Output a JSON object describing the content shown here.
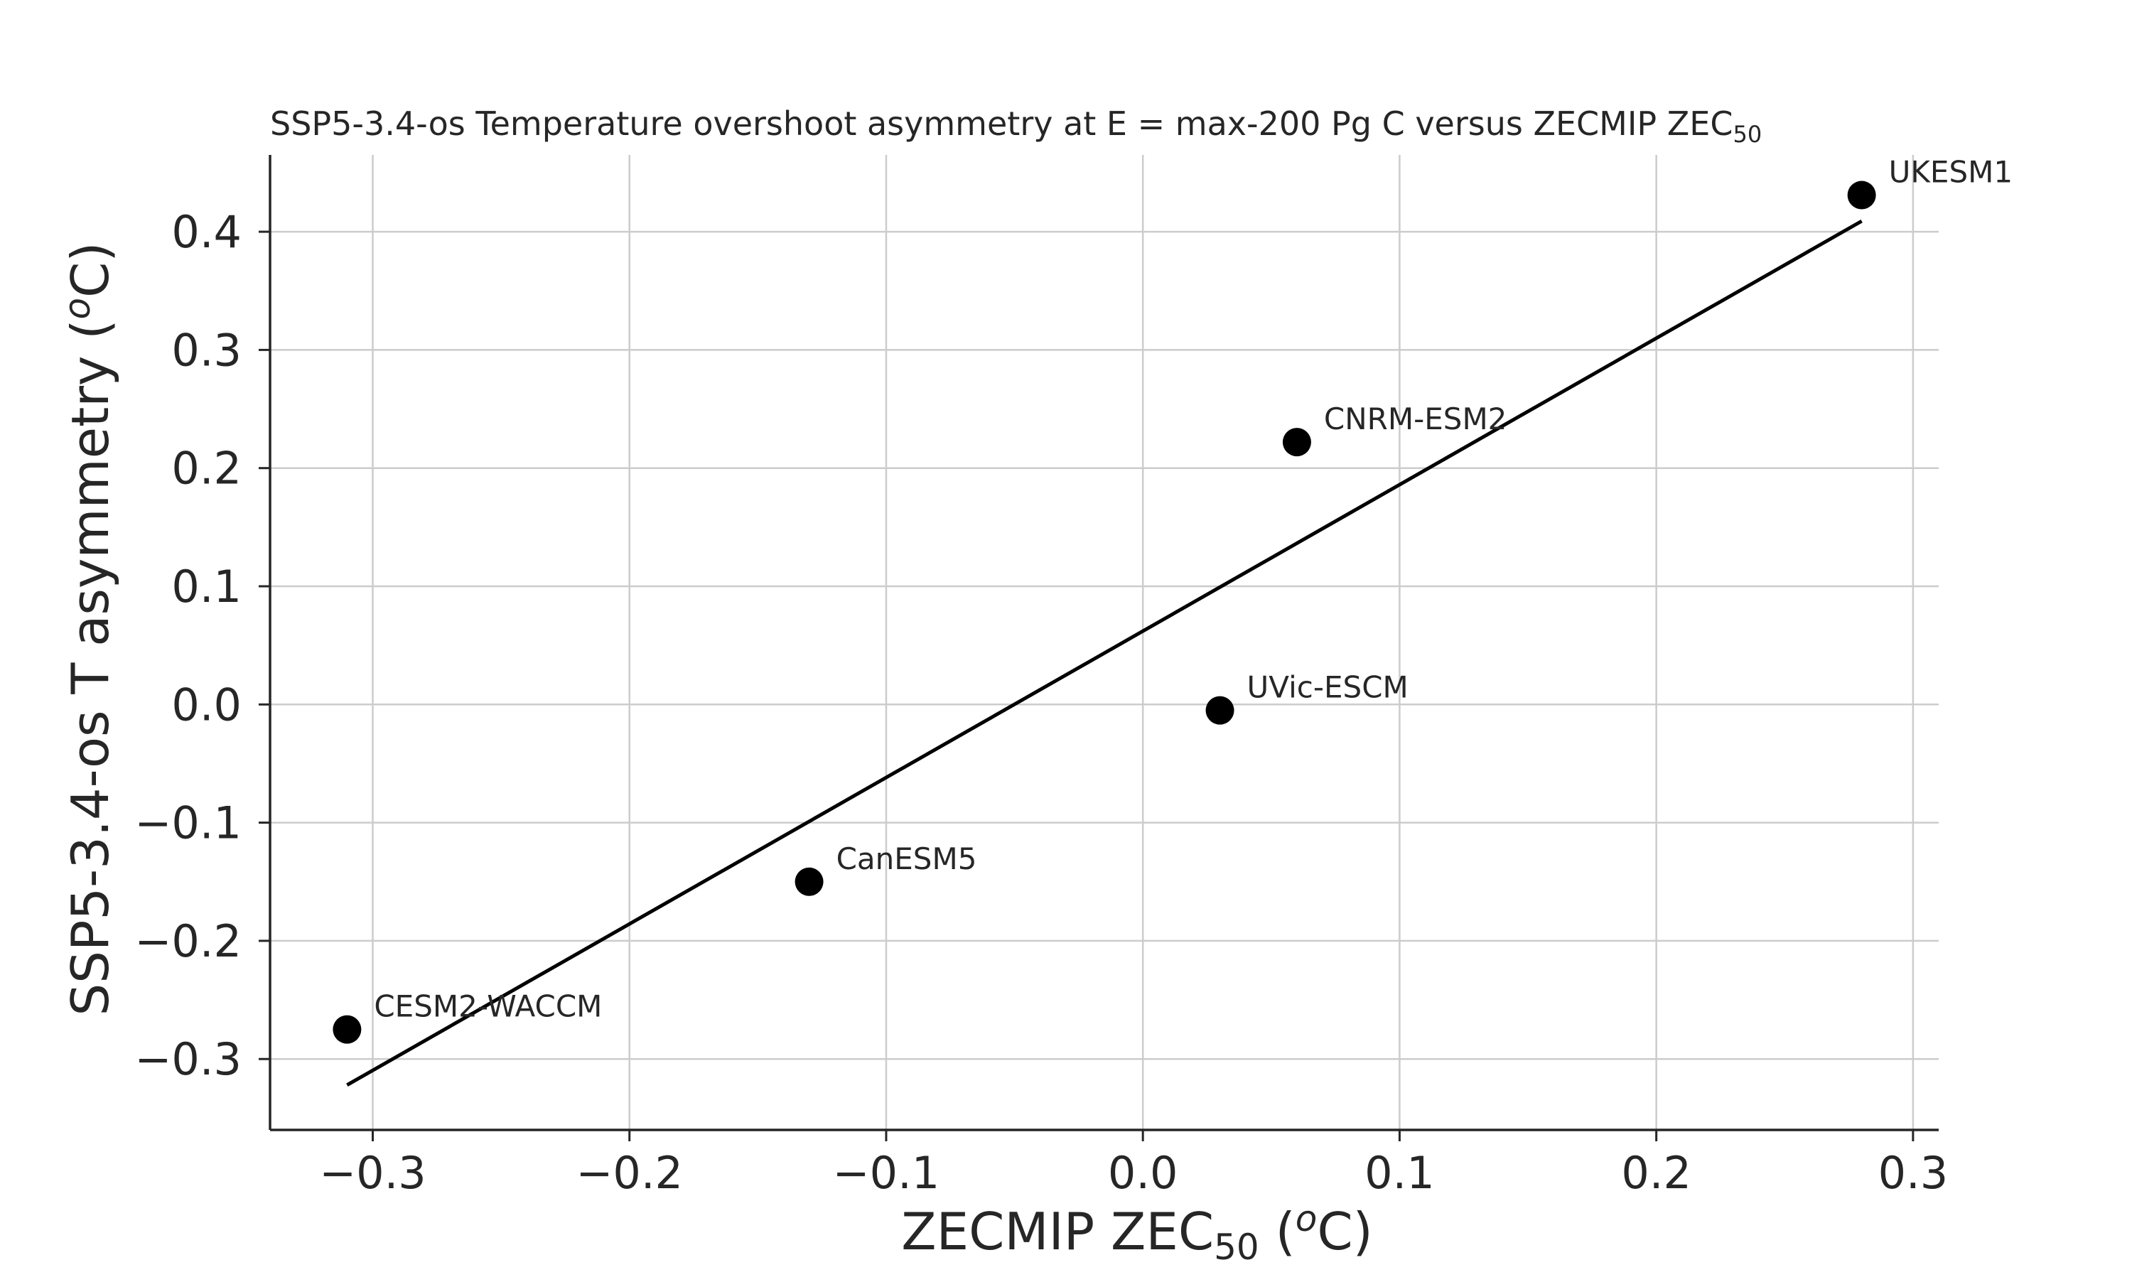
{
  "chart_data": {
    "type": "scatter",
    "title": {
      "main": "SSP5-3.4-os Temperature overshoot asymmetry at E = max-200 Pg C versus ZECMIP ZEC",
      "sub": "50"
    },
    "xlabel": {
      "pre": "ZECMIP ZEC",
      "sub": "50",
      "mid": " (",
      "sup": "o",
      "post": "C)"
    },
    "ylabel": {
      "pre": "SSP5-3.4-os T asymmetry (",
      "sup": "o",
      "post": "C)"
    },
    "xlim": [
      -0.34,
      0.31
    ],
    "ylim": [
      -0.36,
      0.465
    ],
    "xticks": [
      -0.3,
      -0.2,
      -0.1,
      0.0,
      0.1,
      0.2,
      0.3
    ],
    "xtick_labels": [
      "−0.3",
      "−0.2",
      "−0.1",
      "0.0",
      "0.1",
      "0.2",
      "0.3"
    ],
    "yticks": [
      -0.3,
      -0.2,
      -0.1,
      0.0,
      0.1,
      0.2,
      0.3,
      0.4
    ],
    "ytick_labels": [
      "−0.3",
      "−0.2",
      "−0.1",
      "0.0",
      "0.1",
      "0.2",
      "0.3",
      "0.4"
    ],
    "grid": true,
    "points": [
      {
        "label": "CESM2-WACCM",
        "x": -0.31,
        "y": -0.275
      },
      {
        "label": "CanESM5",
        "x": -0.13,
        "y": -0.15
      },
      {
        "label": "UVic-ESCM",
        "x": 0.03,
        "y": -0.005
      },
      {
        "label": "CNRM-ESM2",
        "x": 0.06,
        "y": 0.222
      },
      {
        "label": "UKESM1",
        "x": 0.28,
        "y": 0.431
      }
    ],
    "fit_line": {
      "x": [
        -0.31,
        0.28
      ],
      "y": [
        -0.322,
        0.409
      ]
    },
    "colors": {
      "points": "#000000",
      "line": "#000000",
      "grid": "#cccccc",
      "text": "#262626"
    }
  }
}
